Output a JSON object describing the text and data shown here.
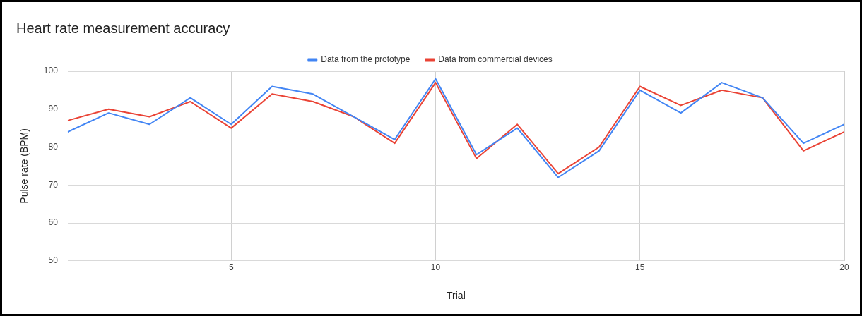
{
  "chart_data": {
    "type": "line",
    "title": "Heart rate measurement accuracy",
    "xlabel": "Trial",
    "ylabel": "Pulse rate (BPM)",
    "x": [
      1,
      2,
      3,
      4,
      5,
      6,
      7,
      8,
      9,
      10,
      11,
      12,
      13,
      14,
      15,
      16,
      17,
      18,
      19,
      20
    ],
    "series": [
      {
        "name": "Data from the prototype",
        "color": "#4285f4",
        "values": [
          84,
          89,
          86,
          93,
          86,
          96,
          94,
          88,
          82,
          98,
          78,
          85,
          72,
          79,
          95,
          89,
          97,
          93,
          81,
          86
        ]
      },
      {
        "name": "Data from commercial devices",
        "color": "#ea4335",
        "values": [
          87,
          90,
          88,
          92,
          85,
          94,
          92,
          88,
          81,
          97,
          77,
          86,
          73,
          80,
          96,
          91,
          95,
          93,
          79,
          84
        ]
      }
    ],
    "xlim": [
      1,
      20
    ],
    "xticks": [
      5,
      10,
      15,
      20
    ],
    "ylim": [
      50,
      100
    ],
    "yticks": [
      50,
      60,
      70,
      80,
      90,
      100
    ],
    "grid": true,
    "legend": "top",
    "marker": "none",
    "line_style": "solid"
  }
}
